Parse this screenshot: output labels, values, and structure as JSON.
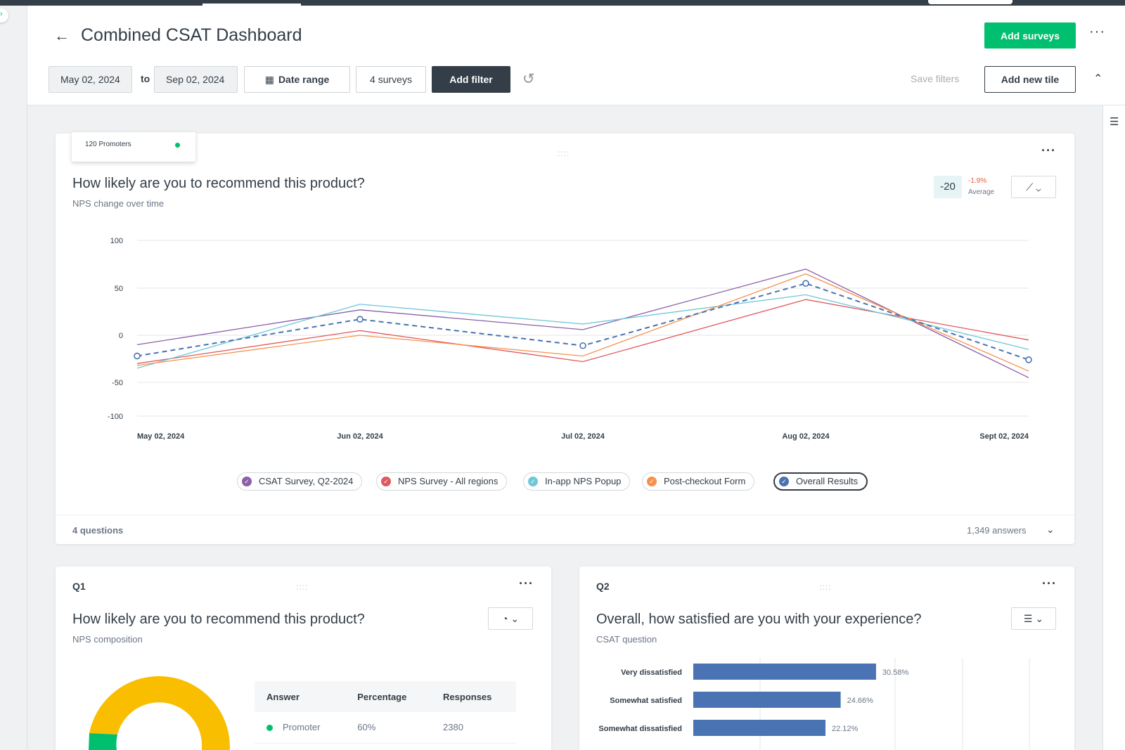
{
  "colors": {
    "brand_green": "#00bf6f",
    "dark": "#333e48",
    "series_purple": "#8b5fa8",
    "series_red": "#e0595e",
    "series_teal": "#6ec8d8",
    "series_orange": "#f7914a",
    "series_overall": "#4a73b3",
    "donut_yellow": "#f9be00"
  },
  "header": {
    "title": "Combined CSAT Dashboard",
    "add_surveys": "Add surveys",
    "date_from": "May 02, 2024",
    "to_label": "to",
    "date_to": "Sep 02, 2024",
    "date_range": "Date range",
    "surveys": "4 surveys",
    "add_filter": "Add filter",
    "save_filters": "Save filters",
    "add_new_tile": "Add new tile"
  },
  "main_tile": {
    "tooltip": "120 Promoters",
    "title": "How likely are you to recommend this product?",
    "subtitle": "NPS change over time",
    "nps_value": "-20",
    "nps_change": "-1.9%",
    "nps_avg_label": "Average",
    "footer_left": "4 questions",
    "footer_right": "1,349 answers",
    "legend": [
      "CSAT Survey, Q2-2024",
      "NPS Survey - All regions",
      "In-app NPS Popup",
      "Post-checkout Form",
      "Overall Results"
    ]
  },
  "chart_data": {
    "type": "line",
    "title": "How likely are you to recommend this product?",
    "subtitle": "NPS change over time",
    "categories": [
      "May 02, 2024",
      "Jun 02, 2024",
      "Jul 02, 2024",
      "Aug 02, 2024",
      "Sept 02, 2024"
    ],
    "y_ticks": [
      100,
      50,
      0,
      -50,
      -100
    ],
    "ylim": [
      -100,
      100
    ],
    "series": [
      {
        "name": "CSAT Survey, Q2-2024",
        "values": [
          -10,
          27,
          6,
          70,
          -45
        ]
      },
      {
        "name": "NPS Survey - All regions",
        "values": [
          -30,
          5,
          -28,
          38,
          -5
        ]
      },
      {
        "name": "In-app NPS Popup",
        "values": [
          -35,
          33,
          12,
          43,
          -15
        ]
      },
      {
        "name": "Post-checkout Form",
        "values": [
          -32,
          0,
          -22,
          65,
          -38
        ]
      },
      {
        "name": "Overall Results",
        "values": [
          -22,
          17,
          -11,
          55,
          -26
        ]
      }
    ]
  },
  "q1": {
    "label": "Q1",
    "title": "How likely are you to recommend this product?",
    "subtitle": "NPS composition",
    "table_headers": [
      "Answer",
      "Percentage",
      "Responses"
    ],
    "rows": [
      {
        "answer": "Promoter",
        "percentage": "60%",
        "responses": "2380"
      }
    ]
  },
  "q2": {
    "label": "Q2",
    "title": "Overall, how satisfied are you with your experience?",
    "subtitle": "CSAT question",
    "bars": [
      {
        "label": "Very dissatisfied",
        "value": 30.58,
        "text": "30.58%"
      },
      {
        "label": "Somewhat satisfied",
        "value": 24.66,
        "text": "24.66%"
      },
      {
        "label": "Somewhat dissatisfied",
        "value": 22.12,
        "text": "22.12%"
      }
    ]
  }
}
